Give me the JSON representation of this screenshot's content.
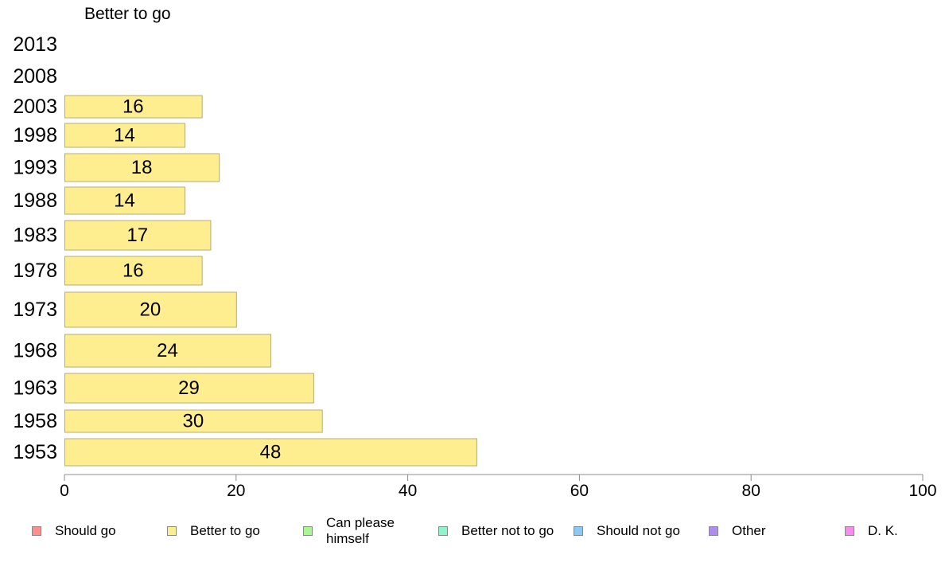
{
  "chart_data": {
    "type": "bar",
    "orientation": "horizontal",
    "title": "Better to go",
    "categories": [
      "1953",
      "1958",
      "1963",
      "1968",
      "1973",
      "1978",
      "1983",
      "1988",
      "1993",
      "1998",
      "2003",
      "2008",
      "2013"
    ],
    "values": [
      48,
      30,
      29,
      24,
      20,
      16,
      17,
      14,
      18,
      14,
      16,
      null,
      null
    ],
    "data_labels": [
      "48",
      "30",
      "29",
      "24",
      "20",
      "16",
      "17",
      "14",
      "18",
      "14",
      "16",
      "",
      ""
    ],
    "xlim": [
      0,
      100
    ],
    "x_ticks": [
      "0",
      "20",
      "40",
      "60",
      "80",
      "100"
    ],
    "grid": false,
    "bar_color": "#ffee8f",
    "bar_border": "#b5ac78",
    "legend_position": "bottom",
    "legend": [
      {
        "label": "Should go",
        "color": "#ff8e8c"
      },
      {
        "label": "Better to go",
        "color": "#ffee8f"
      },
      {
        "label": "Can please himself",
        "color": "#a8f892"
      },
      {
        "label": "Better not to go",
        "color": "#8cf5cc"
      },
      {
        "label": "Should not go",
        "color": "#88c9f8"
      },
      {
        "label": "Other",
        "color": "#ab8ef0"
      },
      {
        "label": "D. K.",
        "color": "#f88cee"
      }
    ]
  }
}
